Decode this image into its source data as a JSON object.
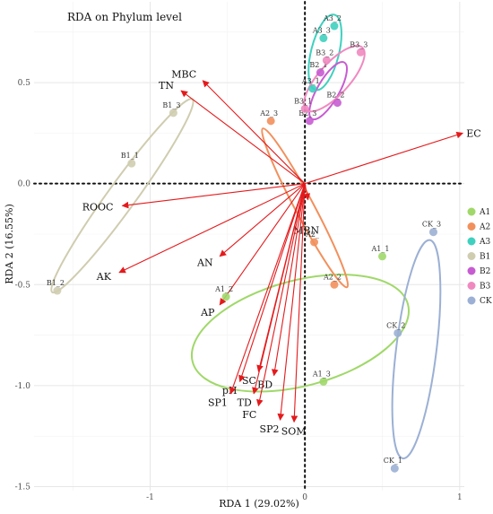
{
  "chart_data": {
    "type": "scatter",
    "title": "RDA on Phylum level",
    "xlabel": "RDA 1 (29.02%)",
    "ylabel": "RDA 2 (16.55%)",
    "xlim": [
      -1.75,
      1.03
    ],
    "ylim": [
      -1.52,
      0.9
    ],
    "xticks": [
      -1,
      0,
      1
    ],
    "yticks": [
      0.5,
      0,
      -0.5,
      -1,
      -1.5
    ],
    "xtick_labels": [
      "-1",
      "0",
      "1"
    ],
    "ytick_labels": [
      "0.5",
      "0.0",
      "-0.5",
      "-1.0",
      "-1.5"
    ],
    "grid": true,
    "legend_position": "right",
    "groups": [
      {
        "name": "A1",
        "color": "#a0d86a",
        "points": [
          {
            "label": "A1_1",
            "x": 0.5,
            "y": -0.36
          },
          {
            "label": "A1_2",
            "x": -0.51,
            "y": -0.56
          },
          {
            "label": "A1_3",
            "x": 0.12,
            "y": -0.98
          }
        ]
      },
      {
        "name": "A2",
        "color": "#f2905c",
        "points": [
          {
            "label": "A2_",
            "x": 0.06,
            "y": -0.29
          },
          {
            "label": "A2_2",
            "x": 0.19,
            "y": -0.5
          },
          {
            "label": "A2_3",
            "x": -0.22,
            "y": 0.31
          }
        ]
      },
      {
        "name": "A3",
        "color": "#3fd0bf",
        "points": [
          {
            "label": "A3_2",
            "x": 0.19,
            "y": 0.78
          },
          {
            "label": "A3_3",
            "x": 0.12,
            "y": 0.72
          },
          {
            "label": "A3_1",
            "x": 0.05,
            "y": 0.47
          }
        ]
      },
      {
        "name": "B1",
        "color": "#cfcdb0",
        "points": [
          {
            "label": "B1_3",
            "x": -0.85,
            "y": 0.35
          },
          {
            "label": "B1_1",
            "x": -1.12,
            "y": 0.1
          },
          {
            "label": "B1_2",
            "x": -1.6,
            "y": -0.53
          }
        ]
      },
      {
        "name": "B2",
        "color": "#c75cd1",
        "points": [
          {
            "label": "B2_1",
            "x": 0.1,
            "y": 0.55
          },
          {
            "label": "B2_2",
            "x": 0.21,
            "y": 0.4
          },
          {
            "label": "B2_3",
            "x": 0.03,
            "y": 0.31
          }
        ]
      },
      {
        "name": "B3",
        "color": "#f089c0",
        "points": [
          {
            "label": "B3_3",
            "x": 0.36,
            "y": 0.65
          },
          {
            "label": "B3_2",
            "x": 0.14,
            "y": 0.61
          },
          {
            "label": "B3_1",
            "x": 0.0,
            "y": 0.37
          }
        ]
      },
      {
        "name": "CK",
        "color": "#9bb0d4",
        "points": [
          {
            "label": "CK_3",
            "x": 0.83,
            "y": -0.24
          },
          {
            "label": "CK_2",
            "x": 0.6,
            "y": -0.74
          },
          {
            "label": "CK_1",
            "x": 0.58,
            "y": -1.41
          }
        ]
      }
    ],
    "ellipses": [
      {
        "group": "A1",
        "cx": -0.03,
        "cy": -0.74,
        "rx": 0.72,
        "ry": 0.34,
        "angle": 15
      },
      {
        "group": "A2",
        "cx": 0.0,
        "cy": -0.12,
        "rx": 0.58,
        "ry": 0.06,
        "angle": -62
      },
      {
        "group": "A3",
        "cx": 0.13,
        "cy": 0.65,
        "rx": 0.25,
        "ry": 0.09,
        "angle": 76
      },
      {
        "group": "B1",
        "cx": -1.18,
        "cy": -0.06,
        "rx": 0.77,
        "ry": 0.09,
        "angle": 54
      },
      {
        "group": "B2",
        "cx": 0.15,
        "cy": 0.46,
        "rx": 0.21,
        "ry": 0.07,
        "angle": 60
      },
      {
        "group": "B3",
        "cx": 0.19,
        "cy": 0.52,
        "rx": 0.27,
        "ry": 0.1,
        "angle": 48
      },
      {
        "group": "CK",
        "cx": 0.72,
        "cy": -0.82,
        "rx": 0.71,
        "ry": 0.13,
        "angle": 83
      }
    ],
    "arrows": [
      {
        "label": "EC",
        "x": 1.02,
        "y": 0.25
      },
      {
        "label": "MBC",
        "x": -0.66,
        "y": 0.51
      },
      {
        "label": "TN",
        "x": -0.8,
        "y": 0.46
      },
      {
        "label": "ROOC",
        "x": -1.18,
        "y": -0.11
      },
      {
        "label": "AK",
        "x": -1.2,
        "y": -0.44
      },
      {
        "label": "MBN",
        "x": 0.02,
        "y": -0.08
      },
      {
        "label": "AN",
        "x": -0.55,
        "y": -0.36
      },
      {
        "label": "AP",
        "x": -0.55,
        "y": -0.6
      },
      {
        "label": "SC",
        "x": -0.3,
        "y": -0.93
      },
      {
        "label": "BD",
        "x": -0.2,
        "y": -0.95
      },
      {
        "label": "pH",
        "x": -0.42,
        "y": -0.98
      },
      {
        "label": "SP1",
        "x": -0.48,
        "y": -1.04
      },
      {
        "label": "TD",
        "x": -0.33,
        "y": -1.04
      },
      {
        "label": "FC",
        "x": -0.3,
        "y": -1.1
      },
      {
        "label": "SP2",
        "x": -0.16,
        "y": -1.17
      },
      {
        "label": "SOM",
        "x": -0.07,
        "y": -1.18
      }
    ]
  }
}
